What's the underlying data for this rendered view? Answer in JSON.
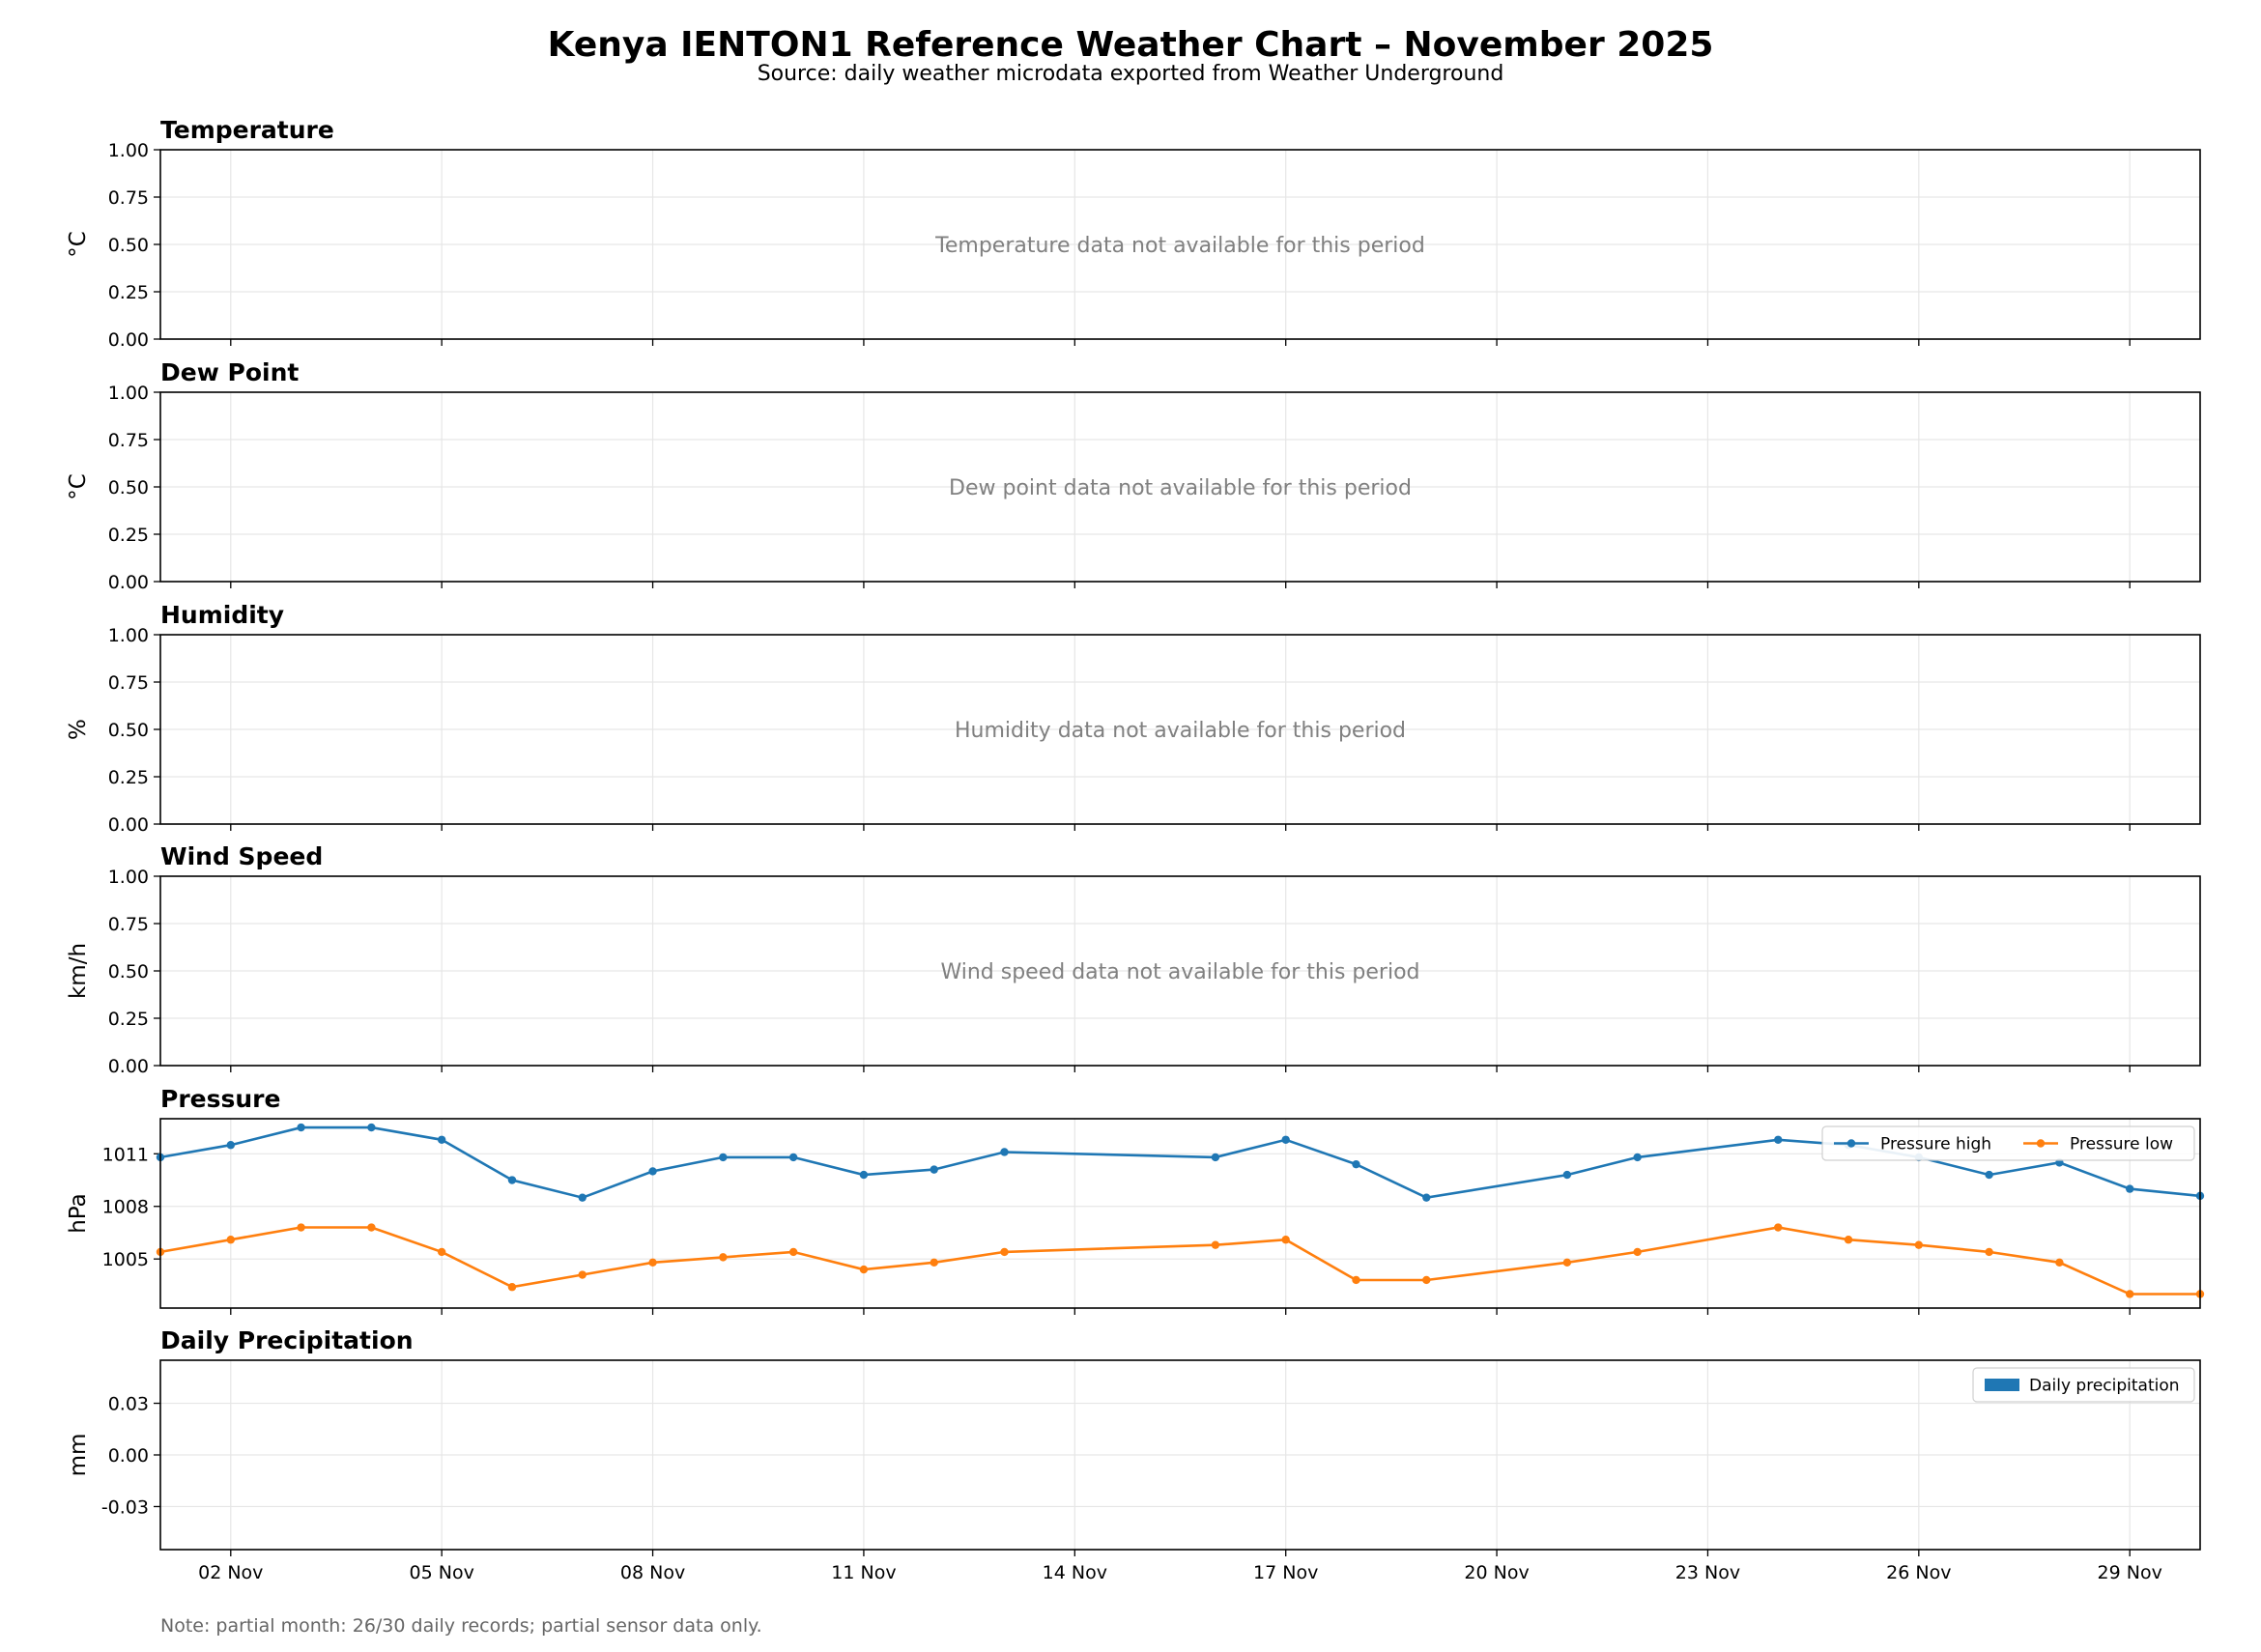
{
  "title": "Kenya IENTON1 Reference Weather Chart – November 2025",
  "subtitle": "Source: daily weather microdata exported from Weather Underground",
  "note": "Note: partial month: 26/30 daily records; partial sensor data only.",
  "colors": {
    "blue": "#1f77b4",
    "orange": "#ff7f0e",
    "grid": "#e6e6e6",
    "na_text": "#808080"
  },
  "x_axis": {
    "range_days": [
      1,
      30
    ],
    "ticks": [
      {
        "day": 2,
        "label": "02 Nov"
      },
      {
        "day": 5,
        "label": "05 Nov"
      },
      {
        "day": 8,
        "label": "08 Nov"
      },
      {
        "day": 11,
        "label": "11 Nov"
      },
      {
        "day": 14,
        "label": "14 Nov"
      },
      {
        "day": 17,
        "label": "17 Nov"
      },
      {
        "day": 20,
        "label": "20 Nov"
      },
      {
        "day": 23,
        "label": "23 Nov"
      },
      {
        "day": 26,
        "label": "26 Nov"
      },
      {
        "day": 29,
        "label": "29 Nov"
      }
    ]
  },
  "chart_data": [
    {
      "type": "line",
      "title": "Temperature",
      "ylabel": "°C",
      "ylim": [
        0,
        1
      ],
      "yticks": [
        "0.00",
        "0.25",
        "0.50",
        "0.75",
        "1.00"
      ],
      "ytick_values": [
        0,
        0.25,
        0.5,
        0.75,
        1
      ],
      "message": "Temperature data not available for this period",
      "grid": true
    },
    {
      "type": "line",
      "title": "Dew Point",
      "ylabel": "°C",
      "ylim": [
        0,
        1
      ],
      "yticks": [
        "0.00",
        "0.25",
        "0.50",
        "0.75",
        "1.00"
      ],
      "ytick_values": [
        0,
        0.25,
        0.5,
        0.75,
        1
      ],
      "message": "Dew point data not available for this period",
      "grid": true
    },
    {
      "type": "line",
      "title": "Humidity",
      "ylabel": "%",
      "ylim": [
        0,
        1
      ],
      "yticks": [
        "0.00",
        "0.25",
        "0.50",
        "0.75",
        "1.00"
      ],
      "ytick_values": [
        0,
        0.25,
        0.5,
        0.75,
        1
      ],
      "message": "Humidity data not available for this period",
      "grid": true
    },
    {
      "type": "line",
      "title": "Wind Speed",
      "ylabel": "km/h",
      "ylim": [
        0,
        1
      ],
      "yticks": [
        "0.00",
        "0.25",
        "0.50",
        "0.75",
        "1.00"
      ],
      "ytick_values": [
        0,
        0.25,
        0.5,
        0.75,
        1
      ],
      "message": "Wind speed data not available for this period",
      "grid": true
    },
    {
      "type": "line",
      "title": "Pressure",
      "ylabel": "hPa",
      "ylim": [
        1002.2,
        1013.0
      ],
      "yticks": [
        "1005",
        "1008",
        "1011"
      ],
      "ytick_values": [
        1005,
        1008,
        1011
      ],
      "grid": true,
      "legend": "top-right",
      "series": [
        {
          "name": "Pressure high",
          "color": "#1f77b4",
          "x": [
            1,
            2,
            3,
            4,
            5,
            6,
            7,
            8,
            9,
            10,
            11,
            12,
            13,
            16,
            17,
            18,
            19,
            21,
            22,
            24,
            25,
            26,
            27,
            28,
            29,
            30
          ],
          "values": [
            1010.8,
            1011.5,
            1012.5,
            1012.5,
            1011.8,
            1009.5,
            1008.5,
            1010.0,
            1010.8,
            1010.8,
            1009.8,
            1010.1,
            1011.1,
            1010.8,
            1011.8,
            1010.4,
            1008.5,
            1009.8,
            1010.8,
            1011.8,
            1011.5,
            1010.8,
            1009.8,
            1010.5,
            1009.0,
            1008.6
          ]
        },
        {
          "name": "Pressure low",
          "color": "#ff7f0e",
          "x": [
            1,
            2,
            3,
            4,
            5,
            6,
            7,
            8,
            9,
            10,
            11,
            12,
            13,
            16,
            17,
            18,
            19,
            21,
            22,
            24,
            25,
            26,
            27,
            28,
            29,
            30
          ],
          "values": [
            1005.4,
            1006.1,
            1006.8,
            1006.8,
            1005.4,
            1003.4,
            1004.1,
            1004.8,
            1005.1,
            1005.4,
            1004.4,
            1004.8,
            1005.4,
            1005.8,
            1006.1,
            1003.8,
            1003.8,
            1004.8,
            1005.4,
            1006.8,
            1006.1,
            1005.8,
            1005.4,
            1004.8,
            1003.0,
            1003.0
          ]
        }
      ]
    },
    {
      "type": "bar",
      "title": "Daily Precipitation",
      "ylabel": "mm",
      "ylim": [
        -0.055,
        0.055
      ],
      "yticks": [
        "-0.03",
        "0.00",
        "0.03"
      ],
      "ytick_values": [
        -0.03,
        0,
        0.03
      ],
      "grid": true,
      "legend": "top-right",
      "series": [
        {
          "name": "Daily precipitation",
          "color": "#1f77b4",
          "x": [],
          "values": []
        }
      ]
    }
  ]
}
